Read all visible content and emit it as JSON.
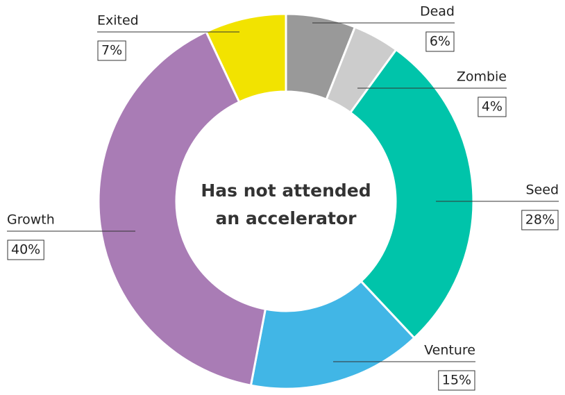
{
  "chart_data": {
    "type": "donut",
    "title": "Has not attended an accelerator",
    "categories": [
      "Dead",
      "Zombie",
      "Seed",
      "Venture",
      "Growth",
      "Exited"
    ],
    "values": [
      6,
      4,
      28,
      15,
      40,
      7
    ],
    "value_labels": [
      "6%",
      "4%",
      "28%",
      "15%",
      "40%",
      "7%"
    ],
    "colors": [
      "#999999",
      "#cccccc",
      "#00c4aa",
      "#41b6e6",
      "#a97cb5",
      "#f2e300"
    ]
  }
}
